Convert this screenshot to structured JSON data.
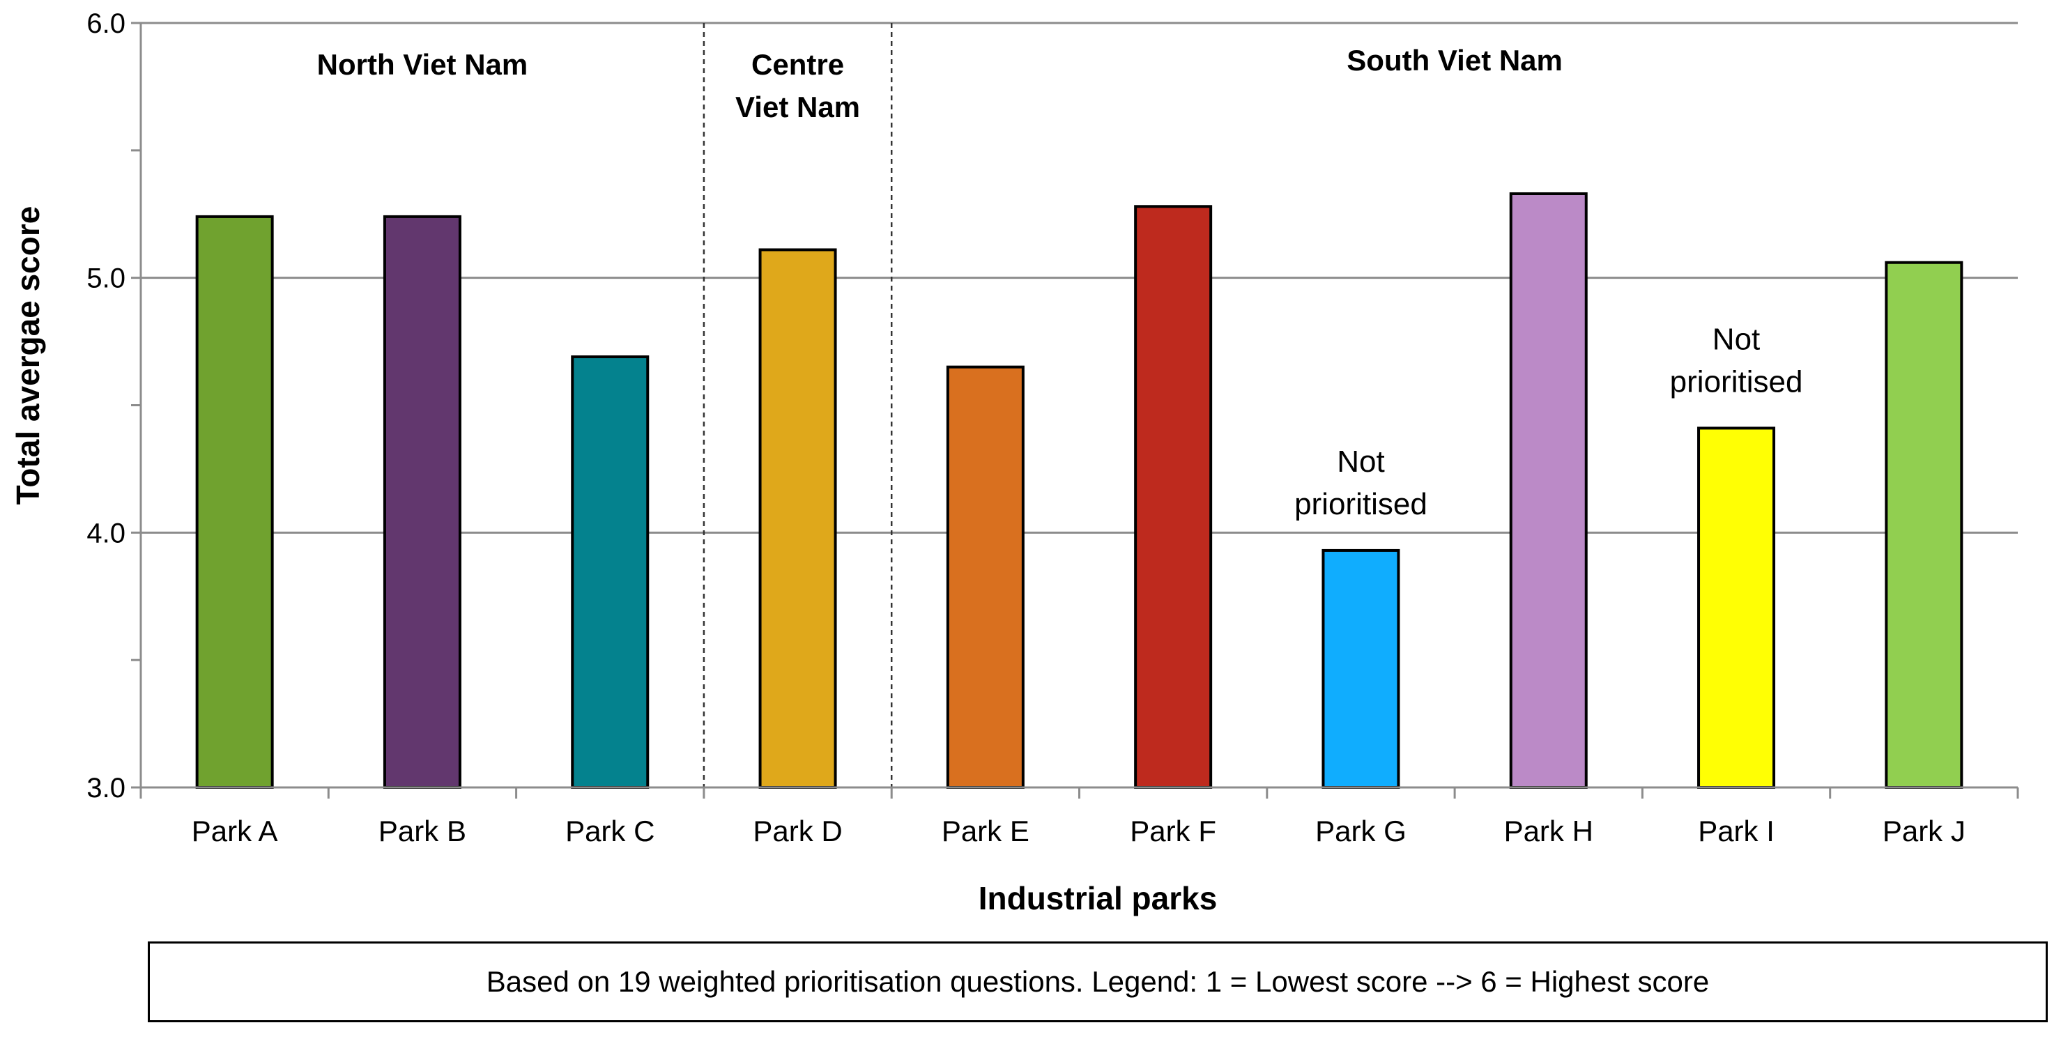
{
  "chart_data": {
    "type": "bar",
    "title": "",
    "xlabel": "Industrial parks",
    "ylabel": "Total avergae score",
    "ylim": [
      3.0,
      6.0
    ],
    "yticks": [
      "3.0",
      "4.0",
      "5.0",
      "6.0"
    ],
    "categories": [
      "Park A",
      "Park B",
      "Park C",
      "Park D",
      "Park E",
      "Park F",
      "Park G",
      "Park H",
      "Park I",
      "Park J"
    ],
    "values": [
      5.24,
      5.24,
      4.69,
      5.11,
      4.65,
      5.28,
      3.93,
      5.33,
      4.41,
      5.06
    ],
    "colors": [
      "#70a22f",
      "#62376e",
      "#04828e",
      "#dfa81b",
      "#d9701f",
      "#be2a1e",
      "#10adfe",
      "#bb8ac7",
      "#ffff04",
      "#91cf50"
    ],
    "regions": [
      {
        "label": [
          "North Viet Nam"
        ],
        "start": 0,
        "end": 2
      },
      {
        "label": [
          "Centre",
          "Viet Nam"
        ],
        "start": 3,
        "end": 3
      },
      {
        "label": [
          "South Viet Nam"
        ],
        "start": 4,
        "end": 9
      }
    ],
    "annotations": [
      {
        "category": "Park G",
        "text": [
          "Not",
          "prioritised"
        ]
      },
      {
        "category": "Park I",
        "text": [
          "Not",
          "prioritised"
        ]
      }
    ],
    "grid": true
  },
  "footnote": "Based on 19 weighted prioritisation questions. Legend: 1 = Lowest score --> 6 = Highest score"
}
